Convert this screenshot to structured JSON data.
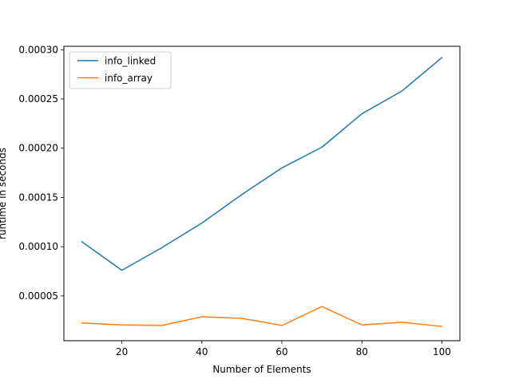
{
  "chart_data": {
    "type": "line",
    "title": "",
    "xlabel": "Number of Elements",
    "ylabel": "runtime in seconds",
    "xlim": [
      5.5,
      104.5
    ],
    "ylim": [
      4.5e-06,
      0.0003035
    ],
    "x": [
      10,
      20,
      30,
      40,
      50,
      60,
      70,
      80,
      90,
      100
    ],
    "xticks": [
      20,
      40,
      60,
      80,
      100
    ],
    "xtick_labels": [
      "20",
      "40",
      "60",
      "80",
      "100"
    ],
    "yticks": [
      5e-05,
      0.0001,
      0.00015,
      0.0002,
      0.00025,
      0.0003
    ],
    "ytick_labels": [
      "0.00005",
      "0.00010",
      "0.00015",
      "0.00020",
      "0.00025",
      "0.00030"
    ],
    "grid": false,
    "legend_position": "top-left",
    "series": [
      {
        "name": "info_linked",
        "color": "#1f77b4",
        "values": [
          0.000105,
          7.6e-05,
          9.9e-05,
          0.000124,
          0.000153,
          0.00018,
          0.000201,
          0.000235,
          0.000258,
          0.000292
        ]
      },
      {
        "name": "info_array",
        "color": "#ff7f0e",
        "values": [
          2.25e-05,
          2.05e-05,
          2e-05,
          2.88e-05,
          2.72e-05,
          2e-05,
          3.92e-05,
          2.05e-05,
          2.32e-05,
          1.9e-05
        ]
      }
    ]
  }
}
